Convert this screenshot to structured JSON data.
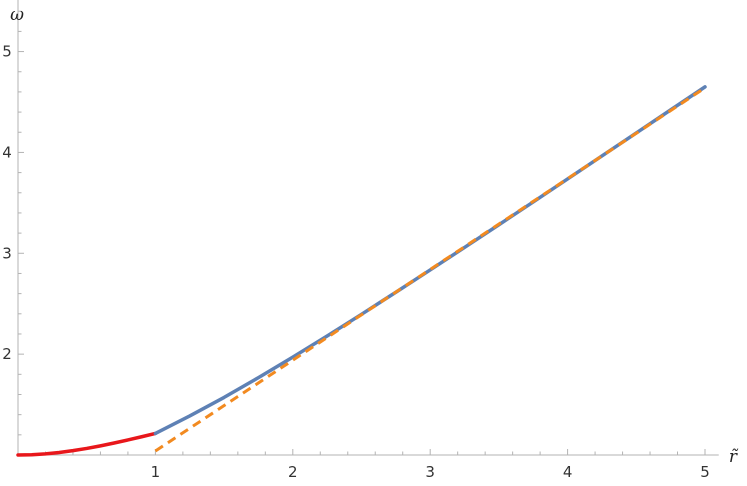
{
  "chart_data": {
    "type": "line",
    "title": "",
    "xlabel": "r̃",
    "ylabel": "ω",
    "xlim": [
      0,
      5.1
    ],
    "ylim": [
      1.0,
      5.6
    ],
    "x_ticks": [
      1,
      2,
      3,
      4,
      5
    ],
    "y_ticks": [
      2,
      3,
      4,
      5
    ],
    "x_tick_labels": [
      "1",
      "2",
      "3",
      "4",
      "5"
    ],
    "y_tick_labels": [
      "2",
      "3",
      "4",
      "5"
    ],
    "grid": false,
    "series": [
      {
        "color": "#e8171b",
        "style": "solid",
        "x": [
          0,
          0.1,
          0.2,
          0.3,
          0.4,
          0.5,
          0.6,
          0.7,
          0.8,
          0.9,
          1.0
        ],
        "y": [
          1.0,
          1.0029,
          1.0113,
          1.025,
          1.043,
          1.065,
          1.0905,
          1.119,
          1.149,
          1.181,
          1.214
        ]
      },
      {
        "color": "#5e81b5",
        "style": "solid",
        "x": [
          1.0,
          1.25,
          1.5,
          1.75,
          2.0,
          2.25,
          2.5,
          2.75,
          3.0,
          3.25,
          3.5,
          3.75,
          4.0,
          4.25,
          4.5,
          4.75,
          5.0
        ],
        "y": [
          1.214,
          1.387,
          1.571,
          1.767,
          1.97,
          2.18,
          2.395,
          2.614,
          2.835,
          3.058,
          3.283,
          3.509,
          3.737,
          3.965,
          4.193,
          4.422,
          4.65
        ]
      },
      {
        "color": "#f28a20",
        "style": "dashed",
        "x": [
          1.0,
          5.0
        ],
        "y": [
          1.04,
          4.64
        ]
      }
    ]
  }
}
